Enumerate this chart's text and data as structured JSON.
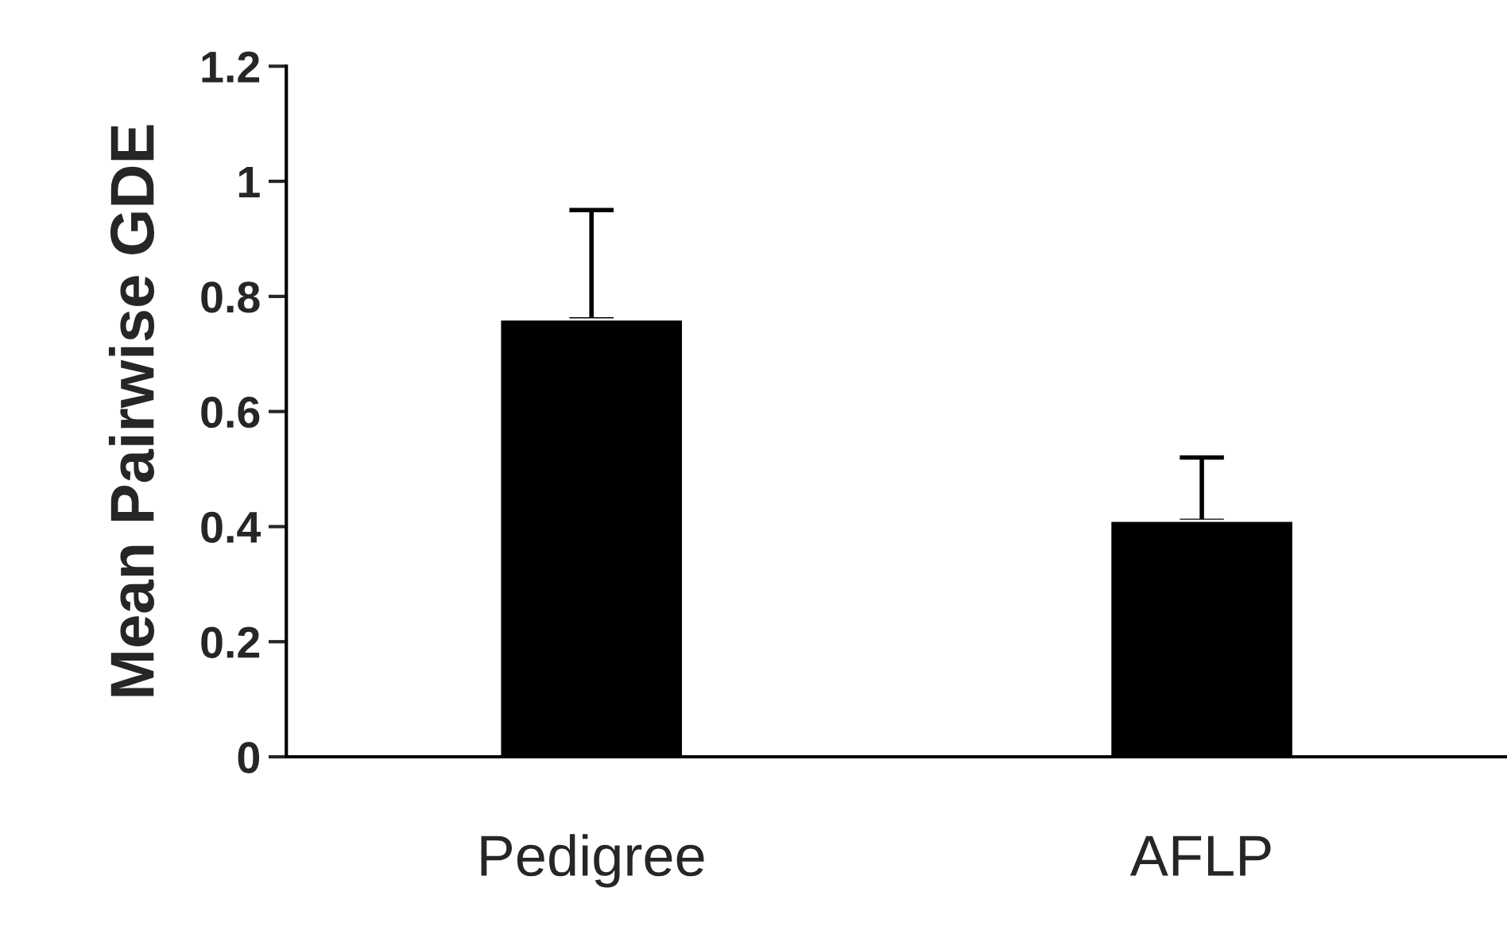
{
  "chart_data": {
    "type": "bar",
    "ylabel": "Mean Pairwise GDE",
    "categories": [
      "Pedigree",
      "AFLP"
    ],
    "values": [
      0.76,
      0.41
    ],
    "colors": [
      "#000000",
      "#000000"
    ],
    "errors": [
      [
        0.76,
        0.95
      ],
      [
        0.41,
        0.52
      ]
    ],
    "ylim": [
      0,
      1.2
    ],
    "yticks": [
      0,
      0.2,
      0.4,
      0.6,
      0.8,
      {
        "value": 1,
        "label": "1"
      },
      1.2
    ],
    "grid": false,
    "legend": false
  }
}
